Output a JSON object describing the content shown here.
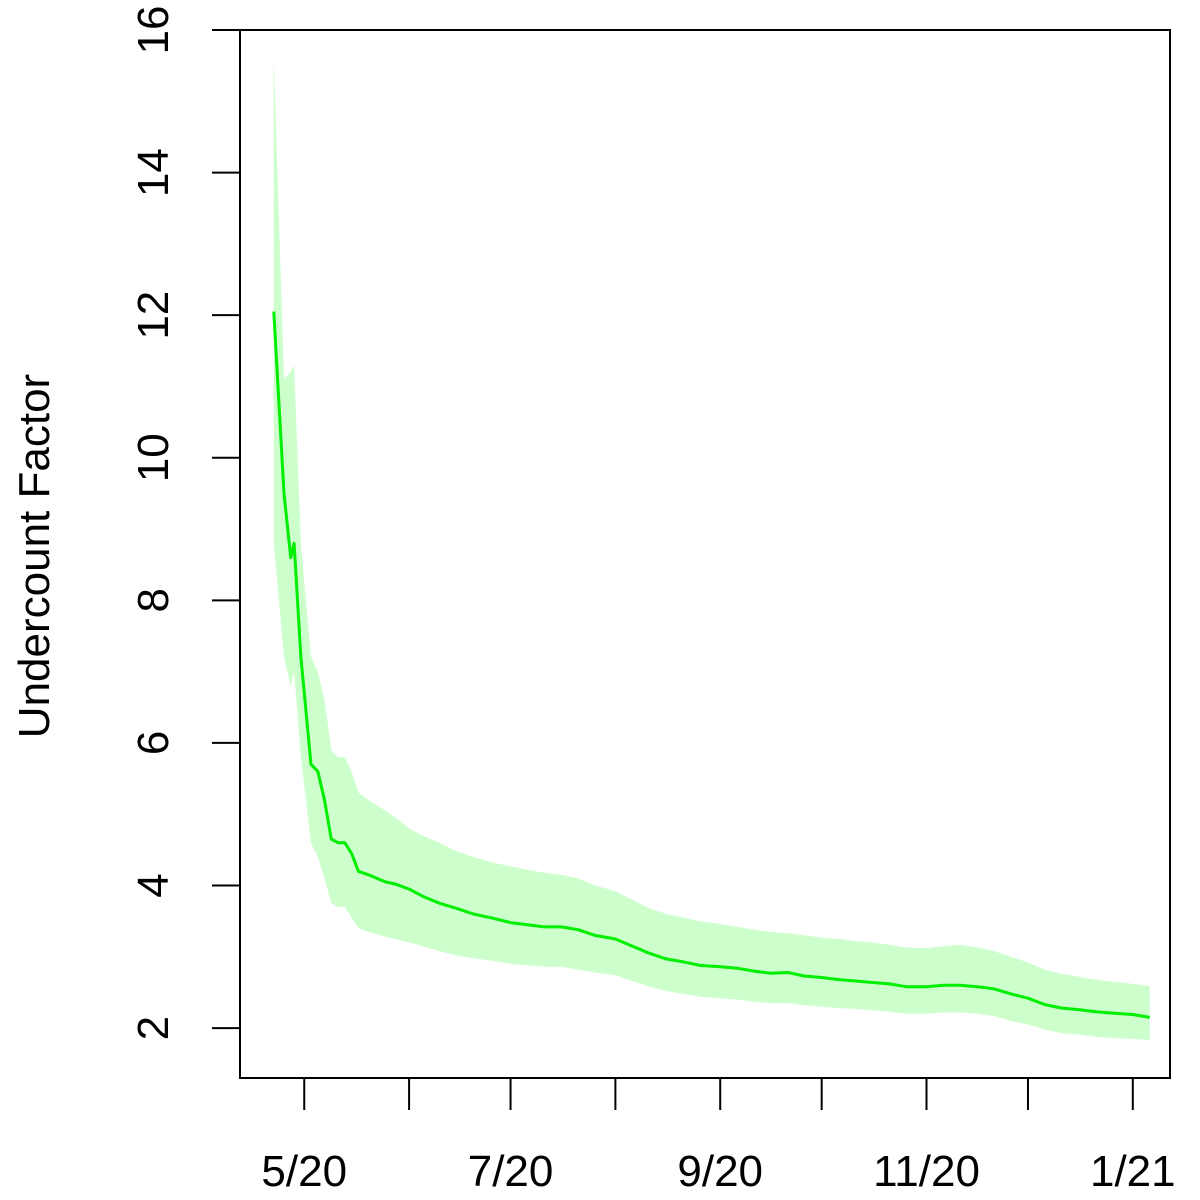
{
  "chart_data": {
    "type": "line",
    "title": "",
    "xlabel": "",
    "ylabel": "Undercount Factor",
    "x_axis": {
      "type": "date",
      "ticks": [
        {
          "date": "2020-05-01",
          "label": "5/20"
        },
        {
          "date": "2020-06-01",
          "label": ""
        },
        {
          "date": "2020-07-01",
          "label": "7/20"
        },
        {
          "date": "2020-08-01",
          "label": ""
        },
        {
          "date": "2020-09-01",
          "label": "9/20"
        },
        {
          "date": "2020-10-01",
          "label": ""
        },
        {
          "date": "2020-11-01",
          "label": "11/20"
        },
        {
          "date": "2020-12-01",
          "label": ""
        },
        {
          "date": "2021-01-01",
          "label": "1/21"
        }
      ],
      "range": [
        "2020-04-12",
        "2021-01-12"
      ]
    },
    "y_axis": {
      "ticks": [
        2,
        4,
        6,
        8,
        10,
        12,
        14,
        16
      ],
      "range": [
        1.3,
        16
      ]
    },
    "grid": false,
    "legend": "none",
    "colors": {
      "line": "#00ee00",
      "band": "#ccffcc",
      "axis": "#000000"
    },
    "series": [
      {
        "band": true,
        "points": [
          {
            "x": "2020-04-22",
            "y": 12.05,
            "lo": 8.8,
            "hi": 15.6
          },
          {
            "x": "2020-04-25",
            "y": 9.5,
            "lo": 7.2,
            "hi": 11.1
          },
          {
            "x": "2020-04-27",
            "y": 8.6,
            "lo": 6.8,
            "hi": 11.2
          },
          {
            "x": "2020-04-28",
            "y": 8.8,
            "lo": 7.0,
            "hi": 11.3
          },
          {
            "x": "2020-04-30",
            "y": 7.2,
            "lo": 5.8,
            "hi": 8.8
          },
          {
            "x": "2020-05-03",
            "y": 5.7,
            "lo": 4.6,
            "hi": 7.2
          },
          {
            "x": "2020-05-05",
            "y": 5.6,
            "lo": 4.4,
            "hi": 7.0
          },
          {
            "x": "2020-05-07",
            "y": 5.2,
            "lo": 4.1,
            "hi": 6.6
          },
          {
            "x": "2020-05-09",
            "y": 4.65,
            "lo": 3.75,
            "hi": 5.9
          },
          {
            "x": "2020-05-11",
            "y": 4.6,
            "lo": 3.7,
            "hi": 5.8
          },
          {
            "x": "2020-05-13",
            "y": 4.6,
            "lo": 3.7,
            "hi": 5.8
          },
          {
            "x": "2020-05-15",
            "y": 4.45,
            "lo": 3.55,
            "hi": 5.6
          },
          {
            "x": "2020-05-17",
            "y": 4.2,
            "lo": 3.4,
            "hi": 5.3
          },
          {
            "x": "2020-05-20",
            "y": 4.15,
            "lo": 3.35,
            "hi": 5.2
          },
          {
            "x": "2020-05-25",
            "y": 4.05,
            "lo": 3.28,
            "hi": 5.05
          },
          {
            "x": "2020-05-28",
            "y": 4.02,
            "lo": 3.25,
            "hi": 4.95
          },
          {
            "x": "2020-06-01",
            "y": 3.95,
            "lo": 3.2,
            "hi": 4.8
          },
          {
            "x": "2020-06-05",
            "y": 3.85,
            "lo": 3.15,
            "hi": 4.7
          },
          {
            "x": "2020-06-10",
            "y": 3.75,
            "lo": 3.08,
            "hi": 4.6
          },
          {
            "x": "2020-06-15",
            "y": 3.68,
            "lo": 3.02,
            "hi": 4.48
          },
          {
            "x": "2020-06-20",
            "y": 3.6,
            "lo": 2.98,
            "hi": 4.4
          },
          {
            "x": "2020-06-25",
            "y": 3.55,
            "lo": 2.95,
            "hi": 4.33
          },
          {
            "x": "2020-07-01",
            "y": 3.48,
            "lo": 2.9,
            "hi": 4.27
          },
          {
            "x": "2020-07-06",
            "y": 3.45,
            "lo": 2.88,
            "hi": 4.22
          },
          {
            "x": "2020-07-11",
            "y": 3.42,
            "lo": 2.86,
            "hi": 4.18
          },
          {
            "x": "2020-07-16",
            "y": 3.42,
            "lo": 2.86,
            "hi": 4.15
          },
          {
            "x": "2020-07-21",
            "y": 3.38,
            "lo": 2.82,
            "hi": 4.1
          },
          {
            "x": "2020-07-26",
            "y": 3.3,
            "lo": 2.78,
            "hi": 4.0
          },
          {
            "x": "2020-08-01",
            "y": 3.25,
            "lo": 2.74,
            "hi": 3.92
          },
          {
            "x": "2020-08-06",
            "y": 3.15,
            "lo": 2.66,
            "hi": 3.8
          },
          {
            "x": "2020-08-11",
            "y": 3.05,
            "lo": 2.58,
            "hi": 3.68
          },
          {
            "x": "2020-08-16",
            "y": 2.97,
            "lo": 2.52,
            "hi": 3.6
          },
          {
            "x": "2020-08-21",
            "y": 2.93,
            "lo": 2.48,
            "hi": 3.55
          },
          {
            "x": "2020-08-26",
            "y": 2.88,
            "lo": 2.44,
            "hi": 3.5
          },
          {
            "x": "2020-09-01",
            "y": 2.86,
            "lo": 2.42,
            "hi": 3.46
          },
          {
            "x": "2020-09-06",
            "y": 2.84,
            "lo": 2.4,
            "hi": 3.42
          },
          {
            "x": "2020-09-11",
            "y": 2.8,
            "lo": 2.37,
            "hi": 3.38
          },
          {
            "x": "2020-09-16",
            "y": 2.77,
            "lo": 2.35,
            "hi": 3.35
          },
          {
            "x": "2020-09-21",
            "y": 2.78,
            "lo": 2.35,
            "hi": 3.33
          },
          {
            "x": "2020-09-26",
            "y": 2.73,
            "lo": 2.32,
            "hi": 3.3
          },
          {
            "x": "2020-10-01",
            "y": 2.71,
            "lo": 2.3,
            "hi": 3.27
          },
          {
            "x": "2020-10-06",
            "y": 2.68,
            "lo": 2.28,
            "hi": 3.25
          },
          {
            "x": "2020-10-11",
            "y": 2.66,
            "lo": 2.27,
            "hi": 3.22
          },
          {
            "x": "2020-10-16",
            "y": 2.64,
            "lo": 2.25,
            "hi": 3.2
          },
          {
            "x": "2020-10-21",
            "y": 2.62,
            "lo": 2.23,
            "hi": 3.17
          },
          {
            "x": "2020-10-26",
            "y": 2.58,
            "lo": 2.2,
            "hi": 3.13
          },
          {
            "x": "2020-11-01",
            "y": 2.58,
            "lo": 2.2,
            "hi": 3.12
          },
          {
            "x": "2020-11-06",
            "y": 2.6,
            "lo": 2.22,
            "hi": 3.15
          },
          {
            "x": "2020-11-11",
            "y": 2.6,
            "lo": 2.22,
            "hi": 3.17
          },
          {
            "x": "2020-11-16",
            "y": 2.58,
            "lo": 2.2,
            "hi": 3.13
          },
          {
            "x": "2020-11-21",
            "y": 2.55,
            "lo": 2.17,
            "hi": 3.08
          },
          {
            "x": "2020-11-26",
            "y": 2.48,
            "lo": 2.1,
            "hi": 3.0
          },
          {
            "x": "2020-12-01",
            "y": 2.42,
            "lo": 2.05,
            "hi": 2.92
          },
          {
            "x": "2020-12-06",
            "y": 2.33,
            "lo": 1.98,
            "hi": 2.82
          },
          {
            "x": "2020-12-11",
            "y": 2.28,
            "lo": 1.93,
            "hi": 2.76
          },
          {
            "x": "2020-12-16",
            "y": 2.26,
            "lo": 1.91,
            "hi": 2.72
          },
          {
            "x": "2020-12-21",
            "y": 2.23,
            "lo": 1.88,
            "hi": 2.68
          },
          {
            "x": "2020-12-26",
            "y": 2.21,
            "lo": 1.86,
            "hi": 2.65
          },
          {
            "x": "2021-01-01",
            "y": 2.19,
            "lo": 1.85,
            "hi": 2.62
          },
          {
            "x": "2021-01-06",
            "y": 2.15,
            "lo": 1.83,
            "hi": 2.59
          }
        ]
      }
    ]
  }
}
